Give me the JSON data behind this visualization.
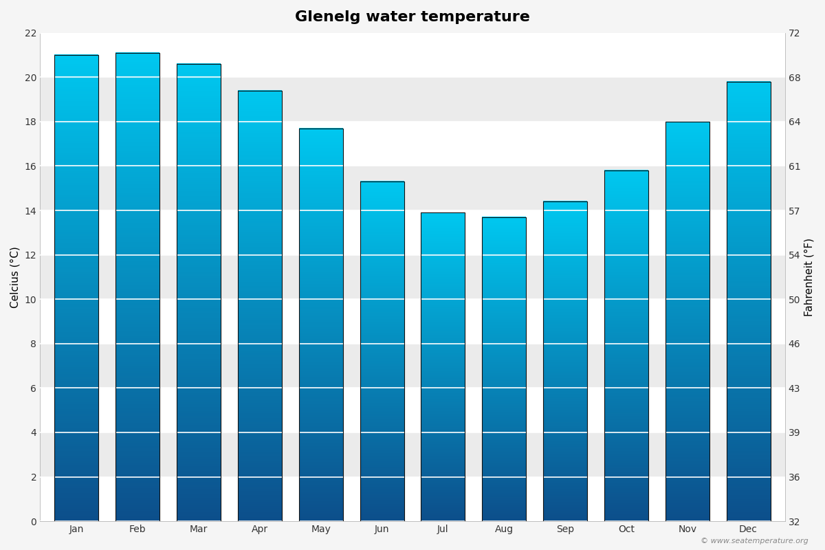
{
  "title": "Glenelg water temperature",
  "months": [
    "Jan",
    "Feb",
    "Mar",
    "Apr",
    "May",
    "Jun",
    "Jul",
    "Aug",
    "Sep",
    "Oct",
    "Nov",
    "Dec"
  ],
  "values_c": [
    21.0,
    21.1,
    20.6,
    19.4,
    17.7,
    15.3,
    13.9,
    13.7,
    14.4,
    15.8,
    18.0,
    19.8
  ],
  "ylabel_left": "Celcius (°C)",
  "ylabel_right": "Fahrenheit (°F)",
  "ylim_left": [
    0,
    22
  ],
  "yticks_left": [
    0,
    2,
    4,
    6,
    8,
    10,
    12,
    14,
    16,
    18,
    20,
    22
  ],
  "yticks_right": [
    32,
    36,
    39,
    43,
    46,
    50,
    54,
    57,
    61,
    64,
    68,
    72
  ],
  "background_color": "#f5f5f5",
  "plot_bg_color": "#ffffff",
  "stripe_color": "#ebebeb",
  "bar_color_top": "#00c8f0",
  "bar_color_bottom": "#0d4f8b",
  "bar_border_color": "#111111",
  "grid_color": "#e0e0e0",
  "copyright_text": "© www.seatemperature.org",
  "title_fontsize": 16,
  "axis_label_fontsize": 11,
  "tick_fontsize": 10,
  "bar_width": 0.72
}
